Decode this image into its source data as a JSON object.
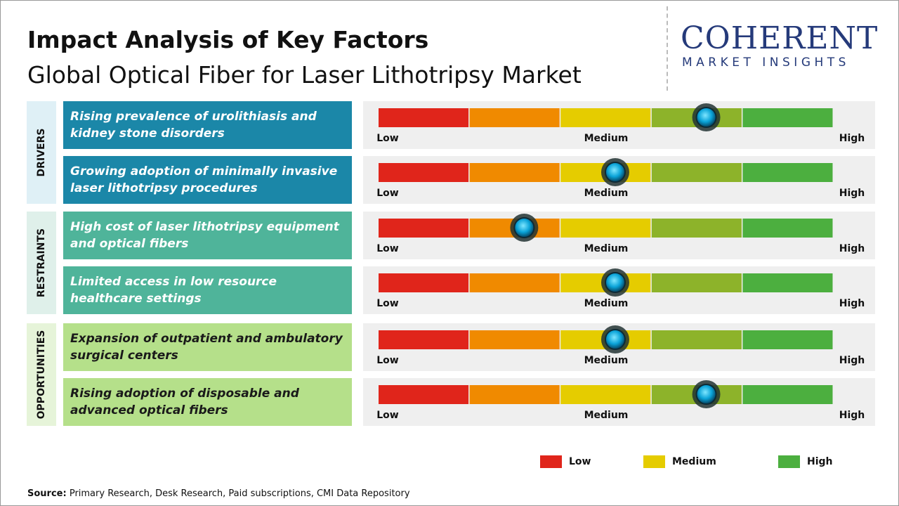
{
  "header": {
    "title": "Impact Analysis of Key Factors",
    "subtitle": "Global Optical Fiber for Laser Lithotripsy Market"
  },
  "logo": {
    "name": "COHERENT",
    "tagline": "MARKET INSIGHTS"
  },
  "scale": {
    "xlim": [
      0,
      5
    ],
    "colors": [
      "#e0251b",
      "#f08a00",
      "#e5cc00",
      "#8db32a",
      "#4caf3f"
    ],
    "labels": [
      "Low",
      "Medium",
      "High"
    ]
  },
  "groups": [
    {
      "label": "DRIVERS",
      "color": "#1b87a8",
      "light": "#dff0f6",
      "text_color": "#ffffff",
      "factors": [
        {
          "text": "Rising prevalence of urolithiasis and kidney stone disorders",
          "impact": 3.6
        },
        {
          "text": "Growing adoption of minimally invasive laser lithotripsy procedures",
          "impact": 2.6
        }
      ]
    },
    {
      "label": "RESTRAINTS",
      "color": "#4fb49a",
      "light": "#dff0ea",
      "text_color": "#ffffff",
      "factors": [
        {
          "text": "High cost of laser lithotripsy equipment and optical fibers",
          "impact": 1.6
        },
        {
          "text": "Limited access in low resource healthcare settings",
          "impact": 2.6
        }
      ]
    },
    {
      "label": "OPPORTUNITIES",
      "color": "#b5e08a",
      "light": "#e6f4d9",
      "text_color": "#1a1a1a",
      "factors": [
        {
          "text": "Expansion of outpatient and ambulatory surgical centers",
          "impact": 2.6
        },
        {
          "text": "Rising adoption of disposable and advanced optical fibers",
          "impact": 3.6
        }
      ]
    }
  ],
  "legend": [
    {
      "label": "Low",
      "color": "#e0251b"
    },
    {
      "label": "Medium",
      "color": "#e5cc00"
    },
    {
      "label": "High",
      "color": "#4caf3f"
    }
  ],
  "source": {
    "label": "Source:",
    "text": "Primary Research, Desk Research, Paid subscriptions, CMI Data Repository"
  }
}
